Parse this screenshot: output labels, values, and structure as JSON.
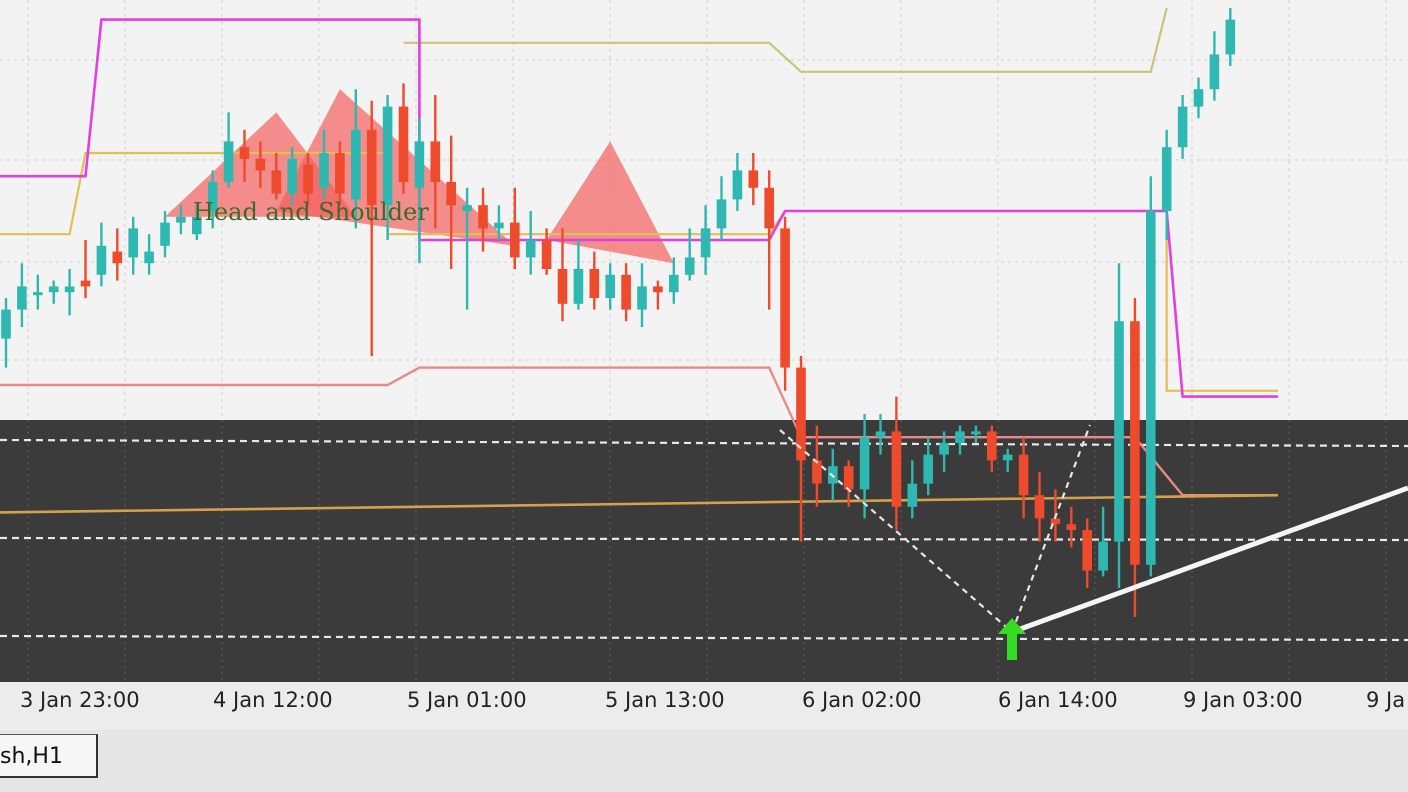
{
  "chart_data": {
    "type": "candlestick",
    "symbol_tab": "sh,H1",
    "pattern_label": "Head and Shoulder",
    "x_ticks": [
      "3 Jan 23:00",
      "4 Jan 12:00",
      "5 Jan 01:00",
      "5 Jan 13:00",
      "6 Jan 02:00",
      "6 Jan 14:00",
      "9 Jan 03:00",
      "9 Ja"
    ],
    "y_range": [
      0,
      100
    ],
    "colors": {
      "bull": "#2fb8b2",
      "bear": "#ee4a2c",
      "pattern": "#f2605c",
      "magenta": "#e040e0",
      "yellow": "#e0c050",
      "olive": "#c9c47a",
      "pink": "#e98b84",
      "arrow": "#33dd22",
      "dark_panel": "#3a3a3a"
    },
    "candles": [
      [
        53,
        58,
        48,
        60
      ],
      [
        58,
        62,
        55,
        66
      ],
      [
        61,
        61,
        58,
        64
      ],
      [
        61,
        62,
        59,
        63
      ],
      [
        61,
        62,
        57,
        65
      ],
      [
        63,
        62,
        60,
        70
      ],
      [
        64,
        69,
        62,
        73
      ],
      [
        68,
        66,
        63,
        72
      ],
      [
        67,
        72,
        64,
        74
      ],
      [
        66,
        68,
        64,
        71
      ],
      [
        69,
        73,
        67,
        75
      ],
      [
        73,
        74,
        71,
        76
      ],
      [
        71,
        74,
        70,
        76
      ],
      [
        75,
        80,
        72,
        82
      ],
      [
        80,
        87,
        79,
        92
      ],
      [
        86,
        84,
        80,
        89
      ],
      [
        84,
        82,
        79,
        87
      ],
      [
        82,
        78,
        77,
        85
      ],
      [
        78,
        84,
        76,
        86
      ],
      [
        83,
        78,
        76,
        85
      ],
      [
        79,
        85,
        77,
        89
      ],
      [
        85,
        78,
        76,
        87
      ],
      [
        77,
        89,
        72,
        96
      ],
      [
        89,
        76,
        50,
        94
      ],
      [
        76,
        93,
        70,
        95
      ],
      [
        93,
        80,
        78,
        97
      ],
      [
        79,
        87,
        66,
        91
      ],
      [
        87,
        80,
        72,
        95
      ],
      [
        80,
        76,
        65,
        88
      ],
      [
        75,
        76,
        58,
        79
      ],
      [
        76,
        72,
        68,
        79
      ],
      [
        72,
        73,
        70,
        76
      ],
      [
        73,
        67,
        65,
        79
      ],
      [
        67,
        70,
        64,
        75
      ],
      [
        70,
        65,
        64,
        72
      ],
      [
        65,
        59,
        56,
        72
      ],
      [
        59,
        65,
        58,
        70
      ],
      [
        65,
        60,
        58,
        68
      ],
      [
        60,
        64,
        58,
        66
      ],
      [
        64,
        58,
        56,
        66
      ],
      [
        58,
        62,
        55,
        66
      ],
      [
        62,
        61,
        58,
        63
      ],
      [
        61,
        64,
        59,
        67
      ],
      [
        64,
        67,
        63,
        72
      ],
      [
        67,
        72,
        64,
        76
      ],
      [
        72,
        77,
        70,
        81
      ],
      [
        77,
        82,
        75,
        85
      ],
      [
        82,
        79,
        76,
        85
      ],
      [
        79,
        72,
        58,
        82
      ],
      [
        72,
        48,
        44,
        74
      ],
      [
        48,
        32,
        18,
        50
      ],
      [
        32,
        28,
        24,
        38
      ],
      [
        28,
        31,
        25,
        34
      ],
      [
        31,
        27,
        24,
        32
      ],
      [
        27,
        36,
        22,
        40
      ],
      [
        36,
        37,
        33,
        40
      ],
      [
        37,
        24,
        20,
        43
      ],
      [
        24,
        28,
        22,
        32
      ],
      [
        28,
        33,
        26,
        36
      ],
      [
        33,
        35,
        30,
        37
      ],
      [
        35,
        37,
        33,
        38
      ],
      [
        37,
        37,
        35,
        38
      ],
      [
        37,
        32,
        30,
        38
      ],
      [
        32,
        33,
        30,
        34
      ],
      [
        33,
        26,
        22,
        36
      ],
      [
        26,
        22,
        18,
        30
      ],
      [
        22,
        21,
        18,
        27
      ],
      [
        21,
        20,
        17,
        24
      ],
      [
        20,
        13,
        10,
        22
      ],
      [
        13,
        18,
        12,
        24
      ],
      [
        18,
        56,
        10,
        66
      ],
      [
        56,
        14,
        5,
        60
      ],
      [
        14,
        75,
        12,
        81
      ],
      [
        75,
        86,
        70,
        89
      ],
      [
        86,
        93,
        84,
        95
      ],
      [
        93,
        96,
        91,
        98
      ],
      [
        96,
        102,
        94,
        106
      ],
      [
        102,
        108,
        100,
        110
      ]
    ],
    "lines": {
      "magenta_band": [
        [
          -1,
          81
        ],
        [
          5,
          81
        ],
        [
          6,
          108
        ],
        [
          26,
          108
        ],
        [
          26,
          70
        ],
        [
          48,
          70
        ],
        [
          49,
          75
        ],
        [
          73,
          75
        ],
        [
          74,
          43
        ],
        [
          80,
          43
        ]
      ],
      "yellow_band": [
        [
          -1,
          71
        ],
        [
          4,
          71
        ],
        [
          5,
          85
        ],
        [
          24,
          85
        ],
        [
          24,
          71
        ],
        [
          48,
          71
        ],
        [
          49,
          75
        ],
        [
          73,
          75
        ],
        [
          73,
          44
        ],
        [
          80,
          44
        ]
      ],
      "olive_band": [
        [
          25,
          104
        ],
        [
          48,
          104
        ],
        [
          50,
          99
        ],
        [
          72,
          99
        ],
        [
          73,
          110
        ]
      ],
      "pink_band": [
        [
          -1,
          45
        ],
        [
          24,
          45
        ],
        [
          26,
          48
        ],
        [
          48,
          48
        ],
        [
          50,
          36
        ],
        [
          71,
          36
        ],
        [
          74,
          26
        ],
        [
          80,
          26
        ]
      ],
      "orange_support": [
        [
          -1,
          23
        ],
        [
          80,
          26
        ]
      ]
    }
  }
}
